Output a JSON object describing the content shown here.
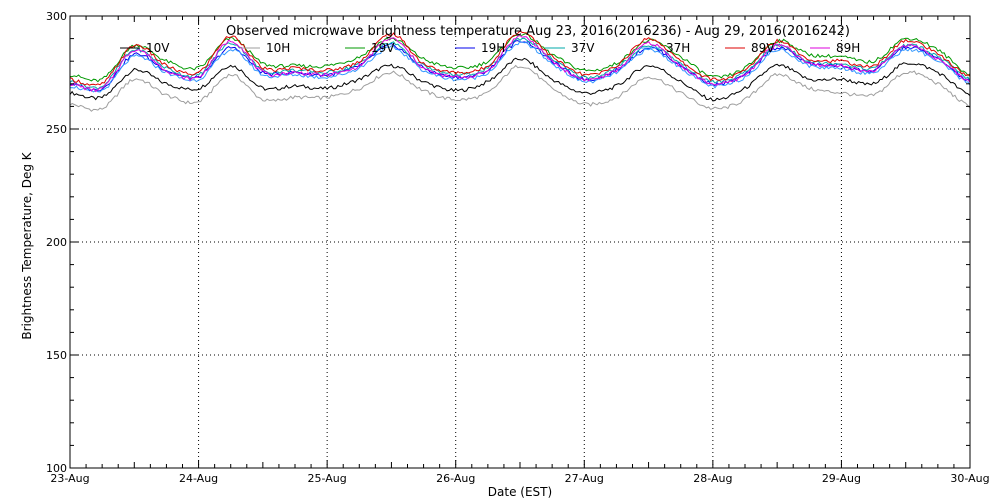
{
  "chart_data": {
    "type": "line",
    "title": "Observed microwave brightness temperature Aug 23, 2016(2016236) - Aug 29, 2016(2016242)",
    "xlabel": "Date (EST)",
    "ylabel": "Brightness Temperature, Deg K",
    "ylim": [
      100,
      300
    ],
    "xlim": [
      0,
      7
    ],
    "yticks": [
      100,
      150,
      200,
      250,
      300
    ],
    "xtick_labels": [
      "23-Aug",
      "24-Aug",
      "25-Aug",
      "26-Aug",
      "27-Aug",
      "28-Aug",
      "29-Aug",
      "30-Aug"
    ],
    "grid": true,
    "legend_position": "top",
    "series": [
      {
        "name": "10V",
        "color": "#000000",
        "x": [
          0,
          0.25,
          0.5,
          0.75,
          1.0,
          1.25,
          1.5,
          1.75,
          2.0,
          2.25,
          2.5,
          2.75,
          3.0,
          3.25,
          3.5,
          3.75,
          4.0,
          4.25,
          4.5,
          4.75,
          5.0,
          5.25,
          5.5,
          5.75,
          6.0,
          6.25,
          6.5,
          6.75,
          7.0
        ],
        "values": [
          266,
          264,
          276,
          270,
          268,
          278,
          268,
          269,
          268,
          272,
          278,
          271,
          267,
          271,
          281,
          272,
          266,
          269,
          278,
          271,
          263,
          268,
          278,
          272,
          272,
          270,
          279,
          275,
          265
        ]
      },
      {
        "name": "10H",
        "color": "#9e9e9e",
        "x": [
          0,
          0.25,
          0.5,
          0.75,
          1.0,
          1.25,
          1.5,
          1.75,
          2.0,
          2.25,
          2.5,
          2.75,
          3.0,
          3.25,
          3.5,
          3.75,
          4.0,
          4.25,
          4.5,
          4.75,
          5.0,
          5.25,
          5.5,
          5.75,
          6.0,
          6.25,
          6.5,
          6.75,
          7.0
        ],
        "values": [
          261,
          259,
          272,
          265,
          262,
          274,
          263,
          264,
          264,
          268,
          275,
          267,
          263,
          266,
          278,
          268,
          261,
          264,
          273,
          266,
          259,
          263,
          274,
          268,
          266,
          265,
          275,
          270,
          260
        ]
      },
      {
        "name": "19V",
        "color": "#009900",
        "x": [
          0,
          0.25,
          0.5,
          0.75,
          1.0,
          1.25,
          1.5,
          1.75,
          2.0,
          2.25,
          2.5,
          2.75,
          3.0,
          3.25,
          3.5,
          3.75,
          4.0,
          4.25,
          4.5,
          4.75,
          5.0,
          5.25,
          5.5,
          5.75,
          6.0,
          6.25,
          6.5,
          6.75,
          7.0
        ],
        "values": [
          274,
          272,
          287,
          280,
          277,
          290,
          279,
          278,
          278,
          282,
          290,
          281,
          277,
          280,
          292,
          283,
          276,
          279,
          289,
          282,
          273,
          277,
          289,
          283,
          282,
          280,
          290,
          285,
          274
        ]
      },
      {
        "name": "19H",
        "color": "#0000ee",
        "x": [
          0,
          0.25,
          0.5,
          0.75,
          1.0,
          1.25,
          1.5,
          1.75,
          2.0,
          2.25,
          2.5,
          2.75,
          3.0,
          3.25,
          3.5,
          3.75,
          4.0,
          4.25,
          4.5,
          4.75,
          5.0,
          5.25,
          5.5,
          5.75,
          6.0,
          6.25,
          6.5,
          6.75,
          7.0
        ],
        "values": [
          270,
          268,
          283,
          276,
          273,
          286,
          275,
          275,
          274,
          278,
          287,
          277,
          273,
          276,
          289,
          280,
          272,
          276,
          286,
          278,
          270,
          274,
          286,
          279,
          278,
          276,
          286,
          281,
          271
        ]
      },
      {
        "name": "37V",
        "color": "#00aaaa",
        "x": [
          0,
          0.25,
          0.5,
          0.75,
          1.0,
          1.25,
          1.5,
          1.75,
          2.0,
          2.25,
          2.5,
          2.75,
          3.0,
          3.25,
          3.5,
          3.75,
          4.0,
          4.25,
          4.5,
          4.75,
          5.0,
          5.25,
          5.5,
          5.75,
          6.0,
          6.25,
          6.5,
          6.75,
          7.0
        ],
        "values": [
          271,
          269,
          285,
          277,
          274,
          288,
          276,
          276,
          275,
          279,
          288,
          278,
          274,
          277,
          290,
          281,
          273,
          277,
          287,
          279,
          271,
          275,
          287,
          280,
          279,
          277,
          287,
          282,
          272
        ]
      },
      {
        "name": "37H",
        "color": "#3399ff",
        "x": [
          0,
          0.25,
          0.5,
          0.75,
          1.0,
          1.25,
          1.5,
          1.75,
          2.0,
          2.25,
          2.5,
          2.75,
          3.0,
          3.25,
          3.5,
          3.75,
          4.0,
          4.25,
          4.5,
          4.75,
          5.0,
          5.25,
          5.5,
          5.75,
          6.0,
          6.25,
          6.5,
          6.75,
          7.0
        ],
        "values": [
          269,
          267,
          282,
          275,
          272,
          285,
          274,
          274,
          273,
          277,
          286,
          276,
          272,
          275,
          288,
          279,
          271,
          275,
          285,
          277,
          269,
          273,
          285,
          278,
          277,
          275,
          285,
          280,
          270
        ]
      },
      {
        "name": "89V",
        "color": "#dd0000",
        "x": [
          0,
          0.25,
          0.5,
          0.75,
          1.0,
          1.25,
          1.5,
          1.75,
          2.0,
          2.25,
          2.5,
          2.75,
          3.0,
          3.25,
          3.5,
          3.75,
          4.0,
          4.25,
          4.5,
          4.75,
          5.0,
          5.25,
          5.5,
          5.75,
          6.0,
          6.25,
          6.5,
          6.75,
          7.0
        ],
        "values": [
          272,
          270,
          287,
          278,
          275,
          291,
          277,
          277,
          276,
          280,
          292,
          279,
          275,
          278,
          293,
          282,
          274,
          278,
          290,
          280,
          272,
          276,
          289,
          281,
          280,
          278,
          289,
          283,
          273
        ]
      },
      {
        "name": "89H",
        "color": "#dd00dd",
        "x": [
          0,
          0.25,
          0.5,
          0.75,
          1.0,
          1.25,
          1.5,
          1.75,
          2.0,
          2.25,
          2.5,
          2.75,
          3.0,
          3.25,
          3.5,
          3.75,
          4.0,
          4.25,
          4.5,
          4.75,
          5.0,
          5.25,
          5.5,
          5.75,
          6.0,
          6.25,
          6.5,
          6.75,
          7.0
        ],
        "values": [
          270,
          268,
          285,
          276,
          273,
          289,
          275,
          275,
          274,
          278,
          290,
          277,
          273,
          276,
          291,
          280,
          272,
          276,
          288,
          278,
          270,
          274,
          287,
          279,
          278,
          276,
          287,
          281,
          271
        ]
      }
    ]
  }
}
